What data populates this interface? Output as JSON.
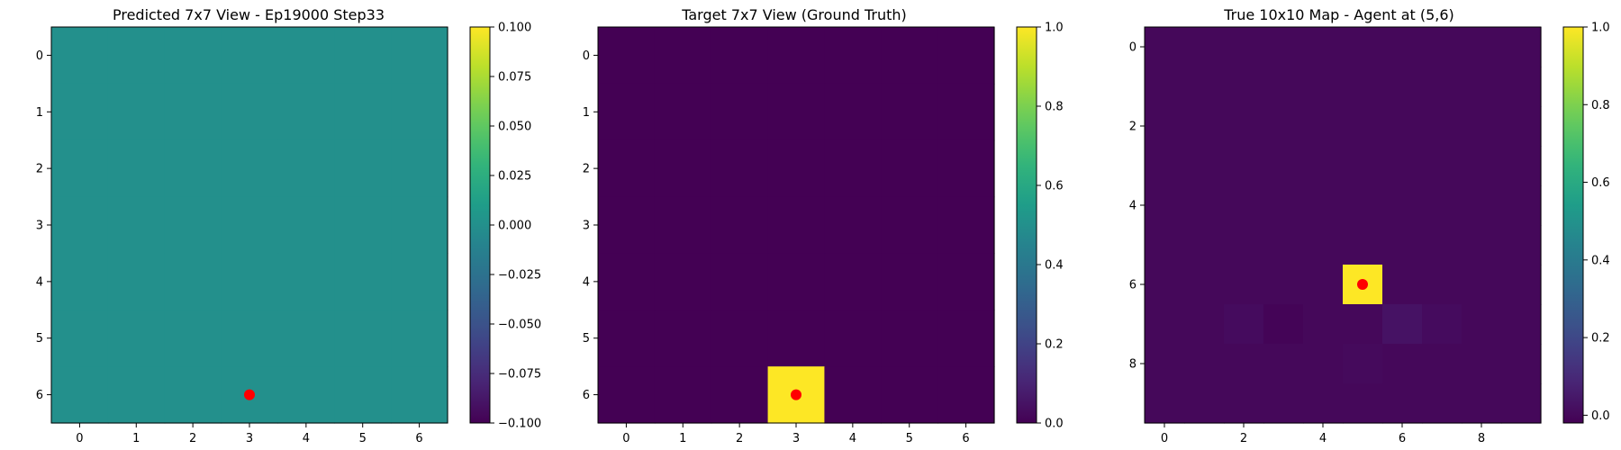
{
  "chart_data": [
    {
      "type": "heatmap",
      "title": "Predicted 7x7 View - Ep19000 Step33",
      "grid_size": 7,
      "values": [
        [
          0,
          0,
          0,
          0,
          0,
          0,
          0
        ],
        [
          0,
          0,
          0,
          0,
          0,
          0,
          0
        ],
        [
          0,
          0,
          0,
          0,
          0,
          0,
          0
        ],
        [
          0,
          0,
          0,
          0,
          0,
          0,
          0
        ],
        [
          0,
          0,
          0,
          0,
          0,
          0,
          0
        ],
        [
          0,
          0,
          0,
          0,
          0,
          0,
          0
        ],
        [
          0,
          0,
          0,
          0,
          0,
          0,
          0
        ]
      ],
      "x_ticks": [
        0,
        1,
        2,
        3,
        4,
        5,
        6
      ],
      "y_ticks": [
        0,
        1,
        2,
        3,
        4,
        5,
        6
      ],
      "marker": {
        "row": 6,
        "col": 3,
        "color": "#ff0000"
      },
      "colorbar": {
        "min": -0.1,
        "max": 0.1,
        "ticks": [
          -0.1,
          -0.075,
          -0.05,
          -0.025,
          0,
          0.025,
          0.05,
          0.075,
          0.1
        ],
        "tick_labels": [
          "−0.100",
          "−0.075",
          "−0.050",
          "−0.025",
          "0.000",
          "0.025",
          "0.050",
          "0.075",
          "0.100"
        ]
      },
      "colormap": "viridis"
    },
    {
      "type": "heatmap",
      "title": "Target 7x7 View (Ground Truth)",
      "grid_size": 7,
      "values": [
        [
          0,
          0,
          0,
          0,
          0,
          0,
          0
        ],
        [
          0,
          0,
          0,
          0,
          0,
          0,
          0
        ],
        [
          0,
          0,
          0,
          0,
          0,
          0,
          0
        ],
        [
          0,
          0,
          0,
          0,
          0,
          0,
          0
        ],
        [
          0,
          0,
          0,
          0,
          0,
          0,
          0
        ],
        [
          0,
          0,
          0,
          0,
          0,
          0,
          0
        ],
        [
          0,
          0,
          0,
          1,
          0,
          0,
          0
        ]
      ],
      "x_ticks": [
        0,
        1,
        2,
        3,
        4,
        5,
        6
      ],
      "y_ticks": [
        0,
        1,
        2,
        3,
        4,
        5,
        6
      ],
      "marker": {
        "row": 6,
        "col": 3,
        "color": "#ff0000"
      },
      "colorbar": {
        "min": 0,
        "max": 1,
        "ticks": [
          0,
          0.2,
          0.4,
          0.6,
          0.8,
          1
        ],
        "tick_labels": [
          "0.0",
          "0.2",
          "0.4",
          "0.6",
          "0.8",
          "1.0"
        ]
      },
      "colormap": "viridis"
    },
    {
      "type": "heatmap",
      "title": "True 10x10 Map - Agent at (5,6)",
      "grid_size": 10,
      "values": [
        [
          0,
          0,
          0,
          0,
          0,
          0,
          0,
          0,
          0,
          0
        ],
        [
          0,
          0,
          0,
          0,
          0,
          0,
          0,
          0,
          0,
          0
        ],
        [
          0,
          0,
          0,
          0,
          0,
          0,
          0,
          0,
          0,
          0
        ],
        [
          0,
          0,
          0,
          0,
          0,
          0,
          0,
          0,
          0,
          0
        ],
        [
          0,
          0,
          0,
          0,
          0,
          0,
          0,
          0,
          0,
          0
        ],
        [
          0,
          0,
          0,
          0,
          0,
          0,
          0,
          0,
          0,
          0
        ],
        [
          0,
          0,
          0,
          0,
          0,
          1,
          0,
          0,
          0,
          0
        ],
        [
          0,
          0,
          0.01,
          -0.01,
          0,
          0,
          0.03,
          0.01,
          0,
          0
        ],
        [
          0,
          0,
          0,
          0,
          0,
          0.005,
          0,
          0,
          0,
          0
        ],
        [
          0,
          0,
          0,
          0,
          0,
          0,
          0,
          0,
          0,
          0
        ]
      ],
      "x_ticks": [
        0,
        2,
        4,
        6,
        8
      ],
      "y_ticks": [
        0,
        2,
        4,
        6,
        8
      ],
      "marker": {
        "row": 6,
        "col": 5,
        "color": "#ff0000"
      },
      "colorbar": {
        "min": -0.02,
        "max": 1,
        "ticks": [
          0,
          0.2,
          0.4,
          0.6,
          0.8,
          1
        ],
        "tick_labels": [
          "0.0",
          "0.2",
          "0.4",
          "0.6",
          "0.8",
          "1.0"
        ]
      },
      "colormap": "viridis"
    }
  ]
}
